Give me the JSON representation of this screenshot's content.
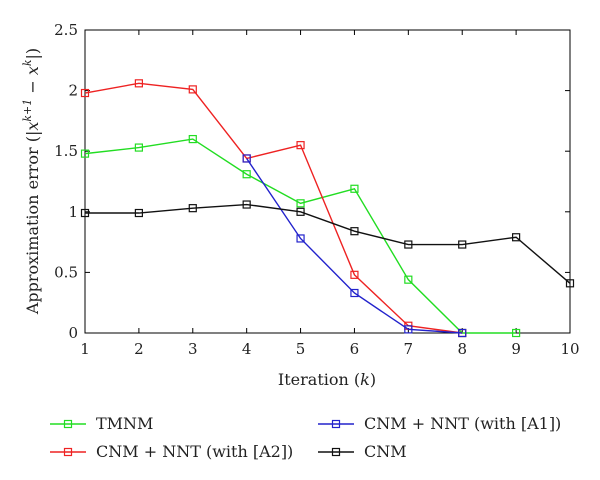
{
  "chart_data": {
    "type": "line",
    "xlabel": "Iteration (k)",
    "ylabel": "Approximation error (|x^{k+1} − x^k|)",
    "xlim": [
      1,
      10
    ],
    "ylim": [
      0,
      2.5
    ],
    "xticks": [
      "1",
      "2",
      "3",
      "4",
      "5",
      "6",
      "7",
      "8",
      "9",
      "10"
    ],
    "yticks": [
      "0",
      "0.5",
      "1",
      "1.5",
      "2",
      "2.5"
    ],
    "grid": false,
    "legend_position": "bottom",
    "series": [
      {
        "name": "TMNM",
        "color": "#22dd22",
        "x": [
          1,
          2,
          3,
          4,
          5,
          6,
          7,
          8,
          9
        ],
        "values": [
          1.48,
          1.53,
          1.6,
          1.31,
          1.07,
          1.19,
          0.44,
          0.0,
          0.0
        ]
      },
      {
        "name": "CNM + NNT (with [A2])",
        "color": "#ee2222",
        "x": [
          1,
          2,
          3,
          4,
          5,
          6,
          7,
          8
        ],
        "values": [
          1.98,
          2.06,
          2.01,
          1.44,
          1.55,
          0.48,
          0.06,
          0.0
        ]
      },
      {
        "name": "CNM + NNT (with [A1])",
        "color": "#2222cc",
        "x": [
          4,
          5,
          6,
          7,
          8
        ],
        "values": [
          1.44,
          0.78,
          0.33,
          0.03,
          0.0
        ]
      },
      {
        "name": "CNM",
        "color": "#111111",
        "x": [
          1,
          2,
          3,
          4,
          5,
          6,
          7,
          8,
          9,
          10
        ],
        "values": [
          0.99,
          0.99,
          1.03,
          1.06,
          1.0,
          0.84,
          0.73,
          0.73,
          0.79,
          0.41
        ]
      }
    ]
  }
}
